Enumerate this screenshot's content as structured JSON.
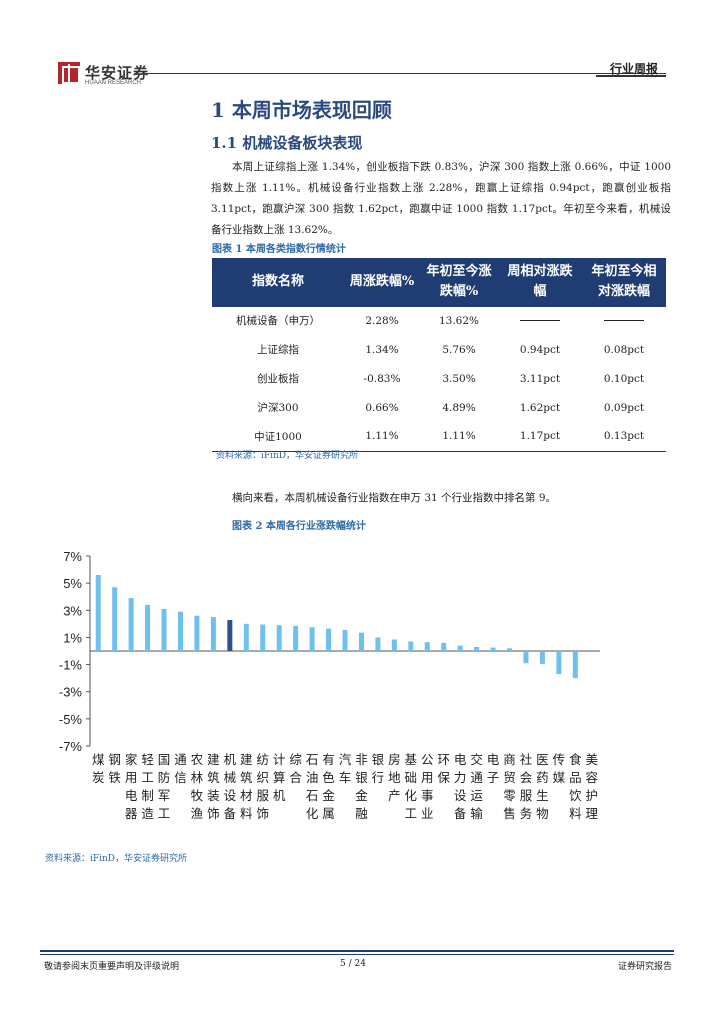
{
  "header": {
    "logo_cn": "华安证券",
    "logo_en": "HUAAN RESEARCH",
    "tag": "行业周报"
  },
  "section": {
    "h1": "1 本周市场表现回顾",
    "h2": "1.1 机械设备板块表现",
    "paragraph": "本周上证综指上涨 1.34%，创业板指下跌 0.83%，沪深 300 指数上涨 0.66%，中证 1000 指数上涨 1.11%。机械设备行业指数上涨 2.28%，跑赢上证综指 0.94pct，跑赢创业板指 3.11pct，跑赢沪深 300 指数 1.62pct，跑赢中证 1000 指数 1.17pct。年初至今来看，机械设备行业指数上涨 13.62%。"
  },
  "table1": {
    "caption": "图表 1 本周各类指数行情统计",
    "headers": [
      "指数名称",
      "周涨跌幅%",
      "年初至今涨跌幅%",
      "周相对涨跌幅",
      "年初至今相对涨跌幅"
    ],
    "rows": [
      [
        "机械设备（申万）",
        "2.28%",
        "13.62%",
        "",
        ""
      ],
      [
        "上证综指",
        "1.34%",
        "5.76%",
        "0.94pct",
        "0.08pct"
      ],
      [
        "创业板指",
        "-0.83%",
        "3.50%",
        "3.11pct",
        "0.10pct"
      ],
      [
        "沪深300",
        "0.66%",
        "4.89%",
        "1.62pct",
        "0.09pct"
      ],
      [
        "中证1000",
        "1.11%",
        "1.11%",
        "1.17pct",
        "0.13pct"
      ]
    ],
    "source": "资料来源：iFinD，华安证券研究所"
  },
  "paragraph2": "横向来看，本周机械设备行业指数在申万 31 个行业指数中排名第 9。",
  "chart_caption": "图表 2 本周各行业涨跌幅统计",
  "chart_source": "资料来源：iFinD，华安证券研究所",
  "chart_data": {
    "type": "bar",
    "title": "",
    "xlabel": "",
    "ylabel": "",
    "ylim": [
      -7,
      7
    ],
    "yticks": [
      "7%",
      "5%",
      "3%",
      "1%",
      "-1%",
      "-3%",
      "-5%",
      "-7%"
    ],
    "grid": false,
    "categories": [
      "煤炭",
      "钢铁",
      "家用电器",
      "轻工制造",
      "国防军工",
      "通信",
      "农林牧渔",
      "建筑装饰",
      "机械设备",
      "建筑材料",
      "纺织服饰",
      "计算机",
      "综合",
      "石油石化",
      "有色金属",
      "汽车",
      "非银金融",
      "银行",
      "房地产",
      "基础化工",
      "公用事业",
      "环保",
      "电力设备",
      "交通运输",
      "电子",
      "商贸零售",
      "社会服务",
      "医药生物",
      "传媒",
      "食品饮料",
      "美容护理"
    ],
    "values": [
      5.6,
      4.7,
      3.9,
      3.4,
      3.1,
      2.9,
      2.6,
      2.5,
      2.28,
      2.0,
      1.95,
      1.9,
      1.85,
      1.75,
      1.65,
      1.55,
      1.35,
      1.0,
      0.85,
      0.7,
      0.65,
      0.6,
      0.4,
      0.3,
      0.25,
      0.2,
      -0.9,
      -0.95,
      -1.7,
      -2.0,
      0.0
    ],
    "highlight": "机械设备",
    "colors": {
      "bar": "#6ec0ee",
      "highlight": "#2f4f8f"
    }
  },
  "footer": {
    "left": "敬请参阅末页重要声明及评级说明",
    "page": "5 / 24",
    "right": "证券研究报告"
  }
}
